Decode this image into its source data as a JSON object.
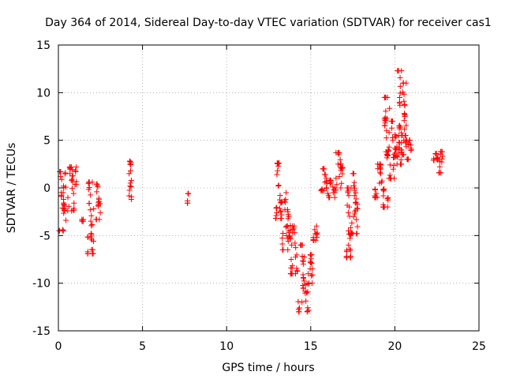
{
  "chart_data": {
    "type": "scatter",
    "title": "Day 364 of 2014, Sidereal Day-to-day VTEC variation (SDTVAR) for receiver cas1",
    "xlabel": "GPS time / hours",
    "ylabel": "SDTVAR / TECUs",
    "xlim": [
      0,
      25
    ],
    "ylim": [
      -15,
      15
    ],
    "xticks": [
      0,
      5,
      10,
      15,
      20,
      25
    ],
    "yticks": [
      -15,
      -10,
      -5,
      0,
      5,
      10,
      15
    ],
    "grid": true,
    "marker": "+",
    "color": "#ff0000",
    "clusters": [
      {
        "x0": 0.0,
        "x1": 0.45,
        "y": [
          -4.5,
          1.7,
          -0.5,
          -3.4,
          -1.2,
          0.2
        ]
      },
      {
        "x0": 0.55,
        "x1": 1.1,
        "y": [
          -2.4,
          2.2,
          0.8,
          -1.0,
          1.5
        ]
      },
      {
        "x0": 1.35,
        "x1": 1.5,
        "y": [
          -3.5,
          -3.3
        ]
      },
      {
        "x0": 1.7,
        "x1": 2.1,
        "y": [
          -6.9,
          0.6,
          -2.2,
          -4.8,
          -6.5
        ]
      },
      {
        "x0": 2.2,
        "x1": 2.5,
        "y": [
          -3.3,
          0.4,
          -1.5,
          -2.6
        ]
      },
      {
        "x0": 4.2,
        "x1": 4.35,
        "y": [
          -1.2,
          2.8,
          1.5,
          0.2
        ]
      },
      {
        "x0": 7.65,
        "x1": 7.75,
        "y": [
          -1.6,
          -0.6
        ]
      },
      {
        "x0": 12.9,
        "x1": 13.3,
        "y": [
          -3.2,
          2.6,
          1.8,
          -1.5,
          -2.5
        ]
      },
      {
        "x0": 13.3,
        "x1": 13.8,
        "y": [
          -6.5,
          -0.5,
          -2.5,
          -4.0,
          -5.0
        ]
      },
      {
        "x0": 13.8,
        "x1": 14.25,
        "y": [
          -9.0,
          -4.0,
          -6.0,
          -7.5
        ]
      },
      {
        "x0": 14.25,
        "x1": 14.9,
        "y": [
          -13.0,
          -6.0,
          -9.0,
          -11.0,
          -12.0
        ]
      },
      {
        "x0": 14.9,
        "x1": 15.1,
        "y": [
          -10.0,
          -7.0,
          -8.5
        ]
      },
      {
        "x0": 15.15,
        "x1": 15.4,
        "y": [
          -5.5,
          -4.0,
          -4.8
        ]
      },
      {
        "x0": 15.6,
        "x1": 16.0,
        "y": [
          -0.3,
          2.0,
          1.0,
          0.5
        ]
      },
      {
        "x0": 16.0,
        "x1": 16.5,
        "y": [
          -1.0,
          0.8,
          0.0,
          -0.5
        ]
      },
      {
        "x0": 16.5,
        "x1": 16.9,
        "y": [
          0.0,
          3.7,
          2.5,
          1.2
        ]
      },
      {
        "x0": 17.1,
        "x1": 17.4,
        "y": [
          -7.3,
          0.0,
          -2.0,
          -4.5,
          -6.0
        ]
      },
      {
        "x0": 17.4,
        "x1": 17.8,
        "y": [
          -4.8,
          1.5,
          -1.5,
          -3.0
        ]
      },
      {
        "x0": 18.8,
        "x1": 19.4,
        "y": [
          -1.0,
          2.5,
          1.5,
          0.5
        ]
      },
      {
        "x0": 19.3,
        "x1": 19.7,
        "y": [
          -2.0,
          9.5,
          4.0,
          1.0,
          6.0
        ]
      },
      {
        "x0": 19.7,
        "x1": 20.1,
        "y": [
          1.0,
          7.0,
          3.5,
          5.0
        ]
      },
      {
        "x0": 20.1,
        "x1": 20.4,
        "y": [
          2.5,
          12.3,
          5.5,
          9.0,
          4.0
        ]
      },
      {
        "x0": 20.4,
        "x1": 20.7,
        "y": [
          3.5,
          11.0,
          7.5,
          5.0
        ]
      },
      {
        "x0": 20.7,
        "x1": 21.0,
        "y": [
          3.0,
          5.0,
          4.0
        ]
      },
      {
        "x0": 22.3,
        "x1": 22.6,
        "y": [
          2.9,
          3.6,
          3.2
        ]
      },
      {
        "x0": 22.6,
        "x1": 22.85,
        "y": [
          1.6,
          3.8,
          2.8
        ]
      }
    ]
  }
}
